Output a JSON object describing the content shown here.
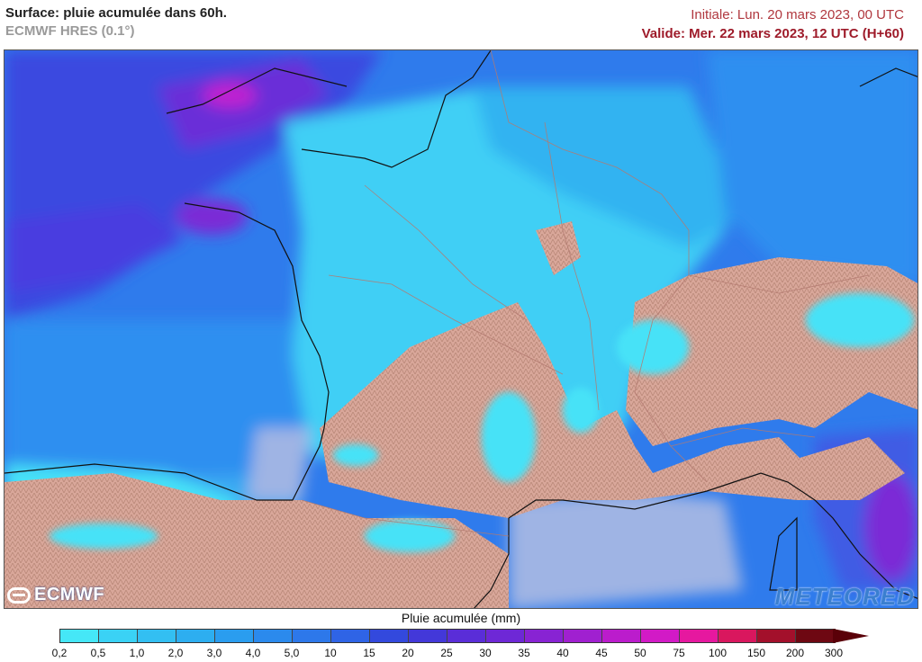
{
  "header": {
    "title": "Surface: pluie acumulée dans 60h.",
    "model": "ECMWF HRES (0.1°)",
    "initial": "Initiale: Lun. 20 mars 2023, 00 UTC",
    "valid": "Valide: Mer. 22 mars 2023, 12 UTC (H+60)"
  },
  "logos": {
    "left": "ECMWF",
    "right": "METEORED"
  },
  "legend": {
    "title": "Pluie acumulée (mm)",
    "ticks": [
      "0,2",
      "0,5",
      "1,0",
      "2,0",
      "3,0",
      "4,0",
      "5,0",
      "10",
      "15",
      "20",
      "25",
      "30",
      "35",
      "40",
      "45",
      "50",
      "75",
      "100",
      "150",
      "200",
      "300"
    ],
    "colors": [
      "#45e7f7",
      "#3ad2f5",
      "#33bff2",
      "#2daef0",
      "#2a9def",
      "#2b8aed",
      "#2d78ea",
      "#2f64e6",
      "#3349dd",
      "#4338d9",
      "#5a2dd8",
      "#6e28d6",
      "#8823d3",
      "#a020d0",
      "#bb1ccc",
      "#d21ac6",
      "#e6189f",
      "#d9175e",
      "#a3102b",
      "#6e0812"
    ],
    "overflow_color": "#5a0008"
  }
}
